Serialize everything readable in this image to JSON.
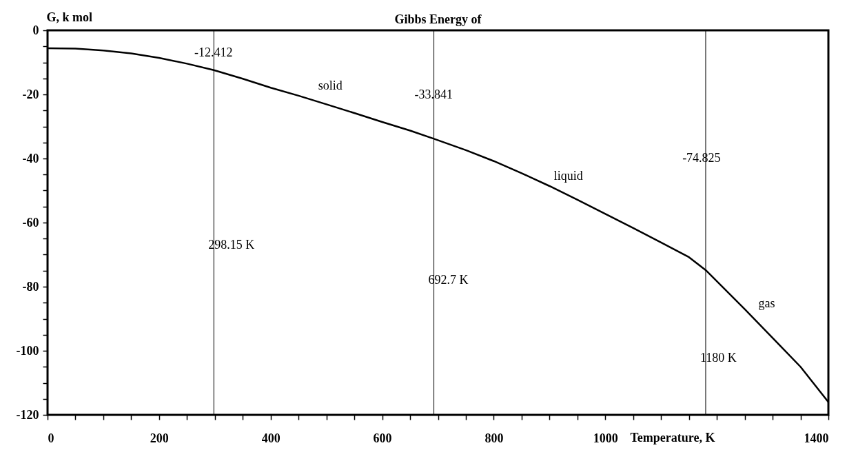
{
  "chart_data": {
    "type": "line",
    "title": "Gibbs Energy of",
    "xlabel": "Temperature, K",
    "ylabel": "G, k   mol",
    "x": [
      0,
      50,
      100,
      150,
      200,
      250,
      298.15,
      350,
      400,
      450,
      500,
      550,
      600,
      650,
      692.7,
      750,
      800,
      850,
      900,
      950,
      1000,
      1050,
      1100,
      1150,
      1180,
      1250,
      1300,
      1350,
      1400
    ],
    "series": [
      {
        "color": "#000000",
        "values": [
          -5.6,
          -5.7,
          -6.3,
          -7.2,
          -8.6,
          -10.4,
          -12.412,
          -15.1,
          -17.9,
          -20.4,
          -23.1,
          -25.8,
          -28.6,
          -31.3,
          -33.841,
          -37.4,
          -40.8,
          -44.6,
          -48.6,
          -52.9,
          -57.3,
          -61.7,
          -66.2,
          -70.8,
          -74.825,
          -87,
          -96,
          -105,
          -116
        ]
      }
    ],
    "xlim": [
      0,
      1400
    ],
    "xticks": [
      0,
      {
        "value": 50,
        "label": null
      },
      {
        "value": 100,
        "label": null
      },
      {
        "value": 150,
        "label": null
      },
      200,
      {
        "value": 250,
        "label": null
      },
      {
        "value": 300,
        "label": null
      },
      {
        "value": 350,
        "label": null
      },
      400,
      {
        "value": 450,
        "label": null
      },
      {
        "value": 500,
        "label": null
      },
      {
        "value": 550,
        "label": null
      },
      600,
      {
        "value": 650,
        "label": null
      },
      {
        "value": 700,
        "label": null
      },
      {
        "value": 750,
        "label": null
      },
      800,
      {
        "value": 850,
        "label": null
      },
      {
        "value": 900,
        "label": null
      },
      {
        "value": 950,
        "label": null
      },
      1000,
      {
        "value": 1050,
        "label": null
      },
      {
        "value": 1100,
        "label": null
      },
      {
        "value": 1150,
        "label": null
      },
      {
        "value": 1200,
        "label": null
      },
      {
        "value": 1250,
        "label": null
      },
      {
        "value": 1300,
        "label": null
      },
      {
        "value": 1350,
        "label": null
      },
      1400
    ],
    "ylim": [
      -120,
      0
    ],
    "yticks": [
      -120,
      {
        "value": -115,
        "label": null
      },
      {
        "value": -110,
        "label": null
      },
      {
        "value": -105,
        "label": null
      },
      -100,
      {
        "value": -95,
        "label": null
      },
      {
        "value": -90,
        "label": null
      },
      {
        "value": -85,
        "label": null
      },
      -80,
      {
        "value": -75,
        "label": null
      },
      {
        "value": -70,
        "label": null
      },
      {
        "value": -65,
        "label": null
      },
      -60,
      {
        "value": -55,
        "label": null
      },
      {
        "value": -50,
        "label": null
      },
      {
        "value": -45,
        "label": null
      },
      -40,
      {
        "value": -35,
        "label": null
      },
      {
        "value": -30,
        "label": null
      },
      {
        "value": -25,
        "label": null
      },
      -20,
      {
        "value": -15,
        "label": null
      },
      {
        "value": -10,
        "label": null
      },
      {
        "value": -5,
        "label": null
      },
      0
    ],
    "ref_lines": [
      {
        "axis": "x",
        "value": 298.15,
        "label": "298.15 K",
        "color": "#000000"
      },
      {
        "axis": "x",
        "value": 692.7,
        "label": "692.7 K",
        "color": "#000000"
      },
      {
        "axis": "x",
        "value": 1180,
        "label": "1180 K",
        "color": "#000000"
      }
    ],
    "annotations": [
      "-12.412",
      "-33.841",
      "-74.825",
      "solid",
      "liquid",
      "gas"
    ],
    "grid": false,
    "marker": "none",
    "line_style": "solid"
  }
}
